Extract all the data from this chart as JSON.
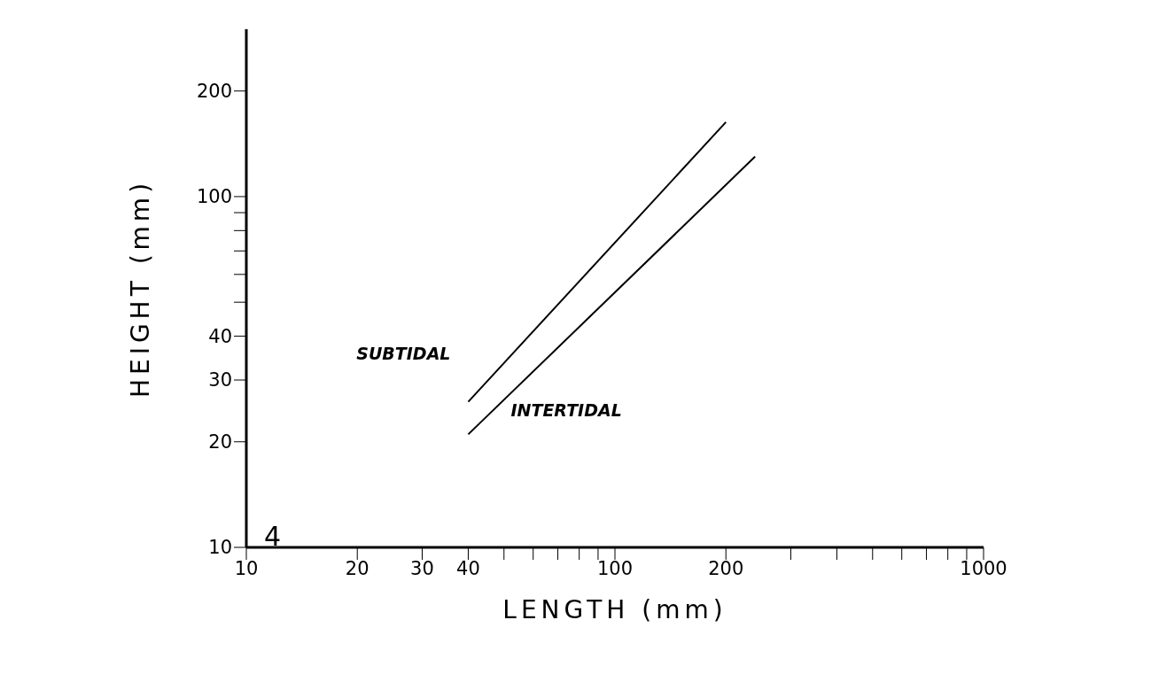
{
  "chart_data": {
    "type": "line",
    "xlabel": "LENGTH (mm)",
    "ylabel": "HEIGHT (mm)",
    "log": "xy",
    "xlim": [
      10,
      1000
    ],
    "ylim": [
      10,
      300
    ],
    "xticks": [
      10,
      20,
      30,
      40,
      {
        "value": 50,
        "label": null
      },
      {
        "value": 60,
        "label": null
      },
      {
        "value": 70,
        "label": null
      },
      {
        "value": 80,
        "label": null
      },
      {
        "value": 90,
        "label": null
      },
      100,
      200,
      {
        "value": 300,
        "label": null
      },
      {
        "value": 400,
        "label": null
      },
      {
        "value": 500,
        "label": null
      },
      {
        "value": 600,
        "label": null
      },
      {
        "value": 700,
        "label": null
      },
      {
        "value": 800,
        "label": null
      },
      {
        "value": 900,
        "label": null
      },
      1000
    ],
    "yticks": [
      10,
      20,
      30,
      40,
      {
        "value": 50,
        "label": null
      },
      {
        "value": 60,
        "label": null
      },
      {
        "value": 70,
        "label": null
      },
      {
        "value": 80,
        "label": null
      },
      {
        "value": 90,
        "label": null
      },
      100,
      200
    ],
    "grid": false,
    "legend": false,
    "marker": "none",
    "line_style": "solid",
    "series": [
      {
        "name": "SUBTIDAL",
        "color": "#000000",
        "x": [
          40,
          200
        ],
        "values": [
          26,
          163
        ]
      },
      {
        "name": "INTERTIDAL",
        "color": "#000000",
        "x": [
          40,
          240
        ],
        "values": [
          21,
          130
        ]
      }
    ],
    "annotations": [
      "4"
    ]
  }
}
